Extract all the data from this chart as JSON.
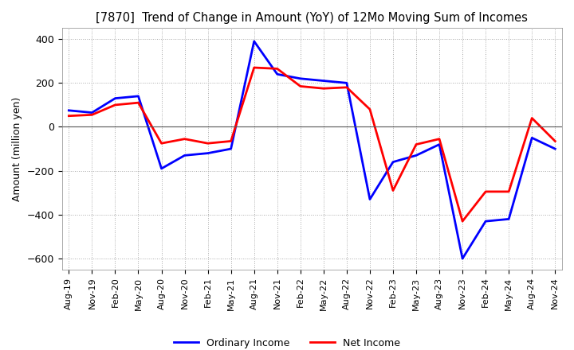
{
  "title": "[7870]  Trend of Change in Amount (YoY) of 12Mo Moving Sum of Incomes",
  "ylabel": "Amount (million yen)",
  "ylim": [
    -650,
    450
  ],
  "yticks": [
    -600,
    -400,
    -200,
    0,
    200,
    400
  ],
  "x_labels": [
    "Aug-19",
    "Nov-19",
    "Feb-20",
    "May-20",
    "Aug-20",
    "Nov-20",
    "Feb-21",
    "May-21",
    "Aug-21",
    "Nov-21",
    "Feb-22",
    "May-22",
    "Aug-22",
    "Nov-22",
    "Feb-23",
    "May-23",
    "Aug-23",
    "Nov-23",
    "Feb-24",
    "May-24",
    "Aug-24",
    "Nov-24"
  ],
  "ordinary_income": [
    75,
    65,
    130,
    140,
    -190,
    -130,
    -120,
    -100,
    390,
    240,
    220,
    210,
    200,
    -330,
    -160,
    -130,
    -80,
    -600,
    -430,
    -420,
    -50,
    -100
  ],
  "net_income": [
    50,
    55,
    100,
    110,
    -75,
    -55,
    -75,
    -65,
    270,
    265,
    185,
    175,
    180,
    80,
    -290,
    -80,
    -55,
    -430,
    -295,
    -295,
    40,
    -65
  ],
  "ordinary_color": "#0000ff",
  "net_color": "#ff0000",
  "grid_color": "#aaaaaa",
  "bg_color": "#ffffff",
  "legend_labels": [
    "Ordinary Income",
    "Net Income"
  ]
}
